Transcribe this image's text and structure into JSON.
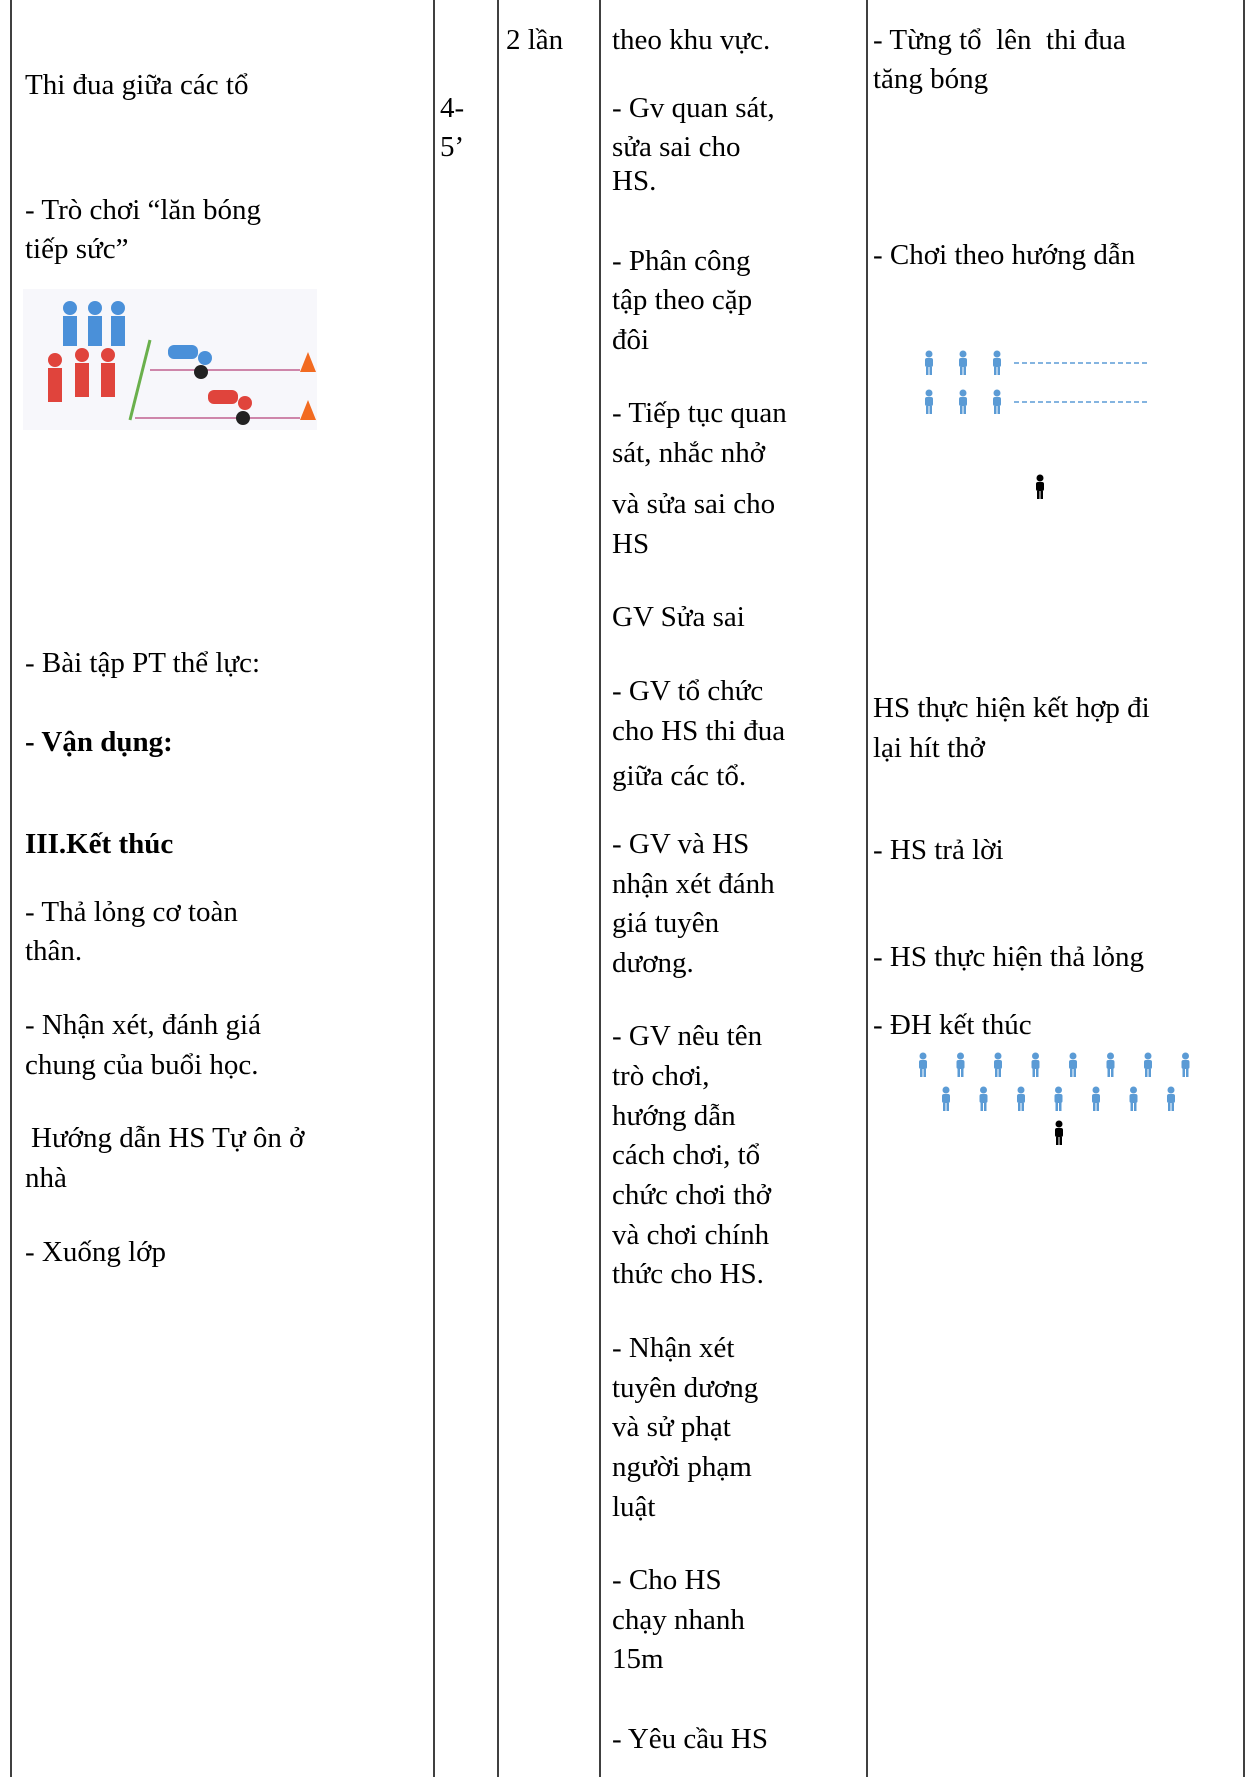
{
  "table": {
    "col1": [
      "Thi đua giữa các tổ",
      "- Trò chơi “lăn bóng",
      "tiếp sức”",
      "- Bài tập PT thể lực:",
      "- Vận dụng:",
      "III.Kết thúc",
      "- Thả lỏng cơ toàn",
      "thân.",
      "- Nhận xét, đánh giá",
      "chung của buổi học.",
      "Hướng dẫn HS Tự ôn ở",
      "nhà",
      "- Xuống lớp"
    ],
    "col2": [
      "4-",
      "5’"
    ],
    "col3": [
      "2 lần"
    ],
    "col4": [
      "theo khu vực.",
      "- Gv quan sát,",
      "sửa sai cho",
      "HS.",
      "- Phân công",
      "tập theo cặp",
      "đôi",
      "- Tiếp tục quan",
      "sát, nhắc nhở",
      "và sửa sai cho",
      "HS",
      "GV Sửa sai",
      "- GV tổ chức",
      "cho HS thi đua",
      "giữa các tổ.",
      "- GV và HS",
      "nhận xét đánh",
      "giá tuyên",
      "dương.",
      "- GV nêu tên",
      "trò chơi,",
      "hướng dẫn",
      "cách chơi, tổ",
      "chức chơi thở",
      "và chơi chính",
      "thức cho HS.",
      "- Nhận xét",
      "tuyên dương",
      "và sử phạt",
      "người phạm",
      "luật",
      "- Cho HS",
      "chạy nhanh",
      "15m",
      "- Yêu cầu HS"
    ],
    "col5": [
      "- Từng tổ  lên  thi đua",
      "tăng bóng",
      "- Chơi theo hướng dẫn",
      "HS thực hiện kết hợp đi",
      "lại hít thở",
      "- HS trả lời",
      "- HS thực hiện thả lỏng",
      "- ĐH kết thúc"
    ]
  }
}
